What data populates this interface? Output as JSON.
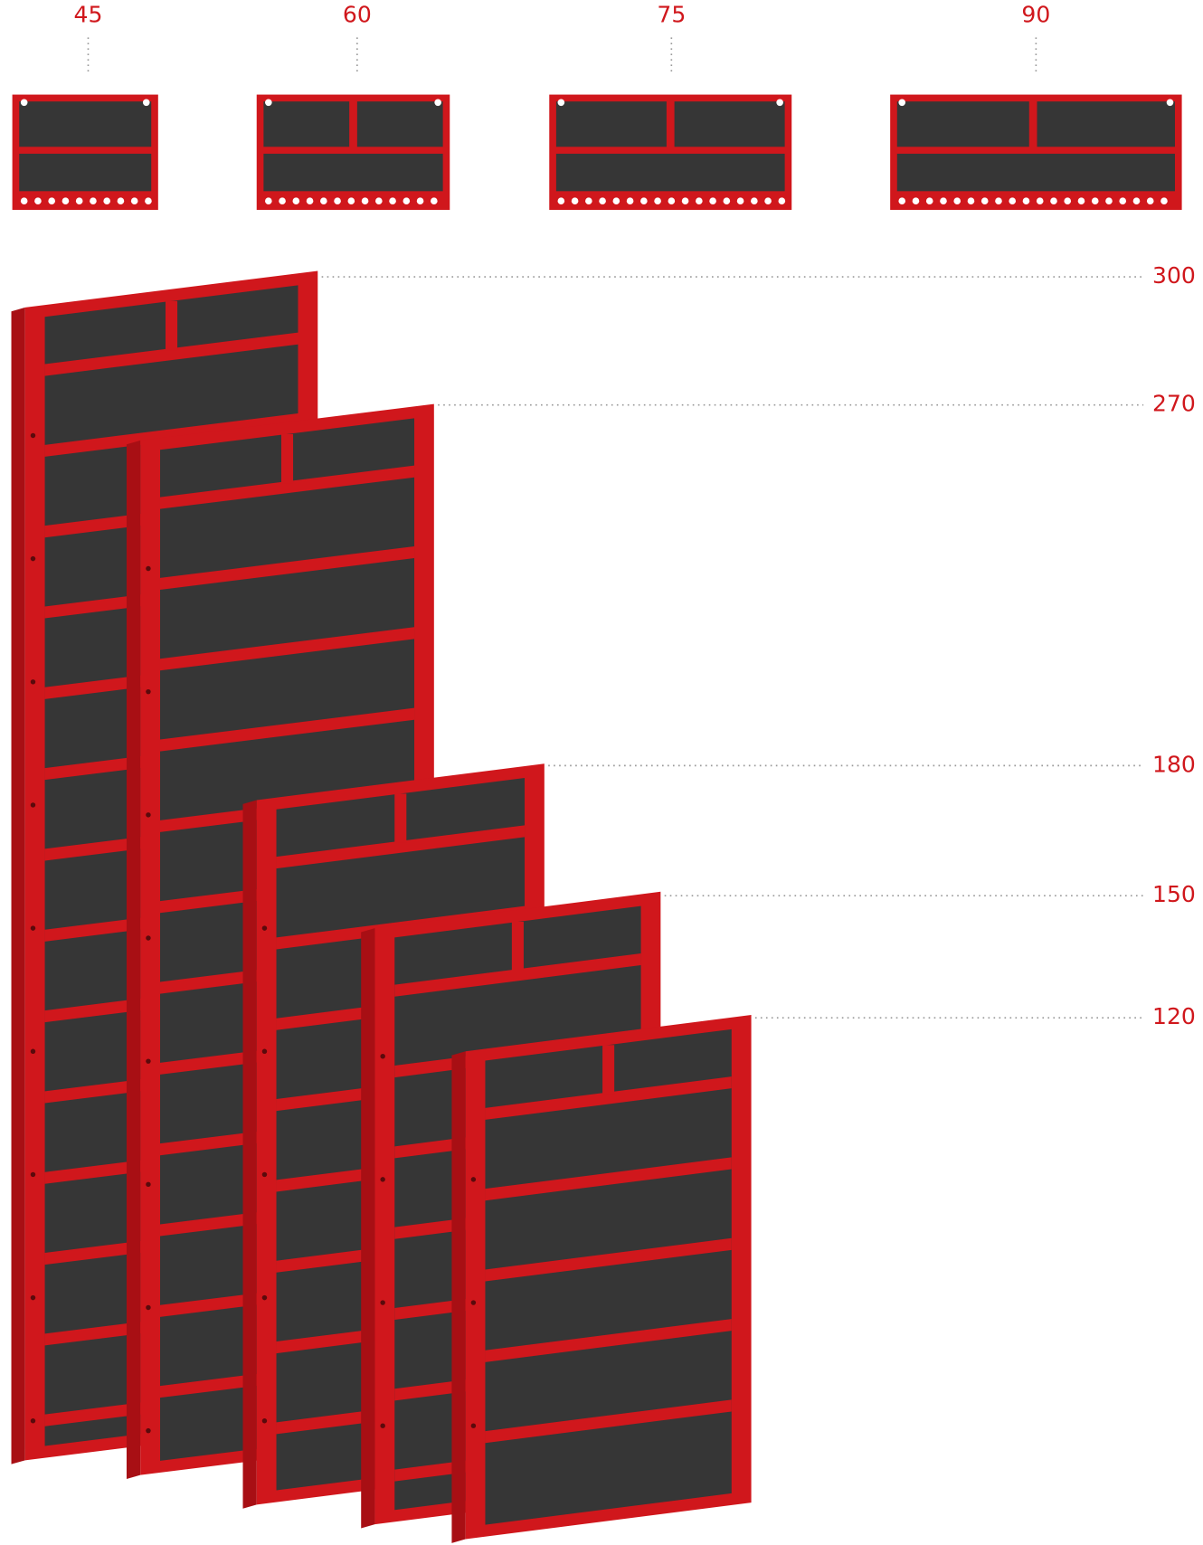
{
  "widths": [
    "45",
    "60",
    "75",
    "90"
  ],
  "heights": [
    "300",
    "270",
    "180",
    "150",
    "120"
  ]
}
